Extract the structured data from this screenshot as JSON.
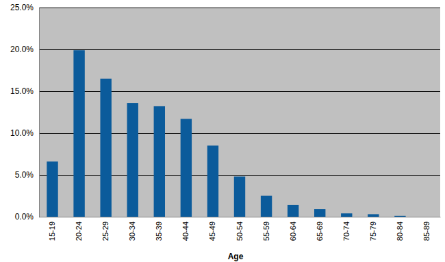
{
  "chart_data": {
    "type": "bar",
    "x_label": "Age",
    "categories": [
      "15-19",
      "20-24",
      "25-29",
      "30-34",
      "35-39",
      "40-44",
      "45-49",
      "50-54",
      "55-59",
      "60-64",
      "65-69",
      "70-74",
      "75-79",
      "80-84",
      "85-89"
    ],
    "values": [
      6.6,
      19.9,
      16.5,
      13.6,
      13.2,
      11.7,
      8.5,
      4.8,
      2.5,
      1.4,
      0.9,
      0.4,
      0.3,
      0.1,
      0.0
    ],
    "color": "#0b5b9b",
    "ylim": [
      0,
      25
    ],
    "yticks": [
      {
        "value": 0,
        "label": "0.0%"
      },
      {
        "value": 5,
        "label": "5.0%"
      },
      {
        "value": 10,
        "label": "10.0%"
      },
      {
        "value": 15,
        "label": "15.0%"
      },
      {
        "value": 20,
        "label": "20.0%"
      },
      {
        "value": 25,
        "label": "25.0%"
      }
    ],
    "grid": true
  }
}
